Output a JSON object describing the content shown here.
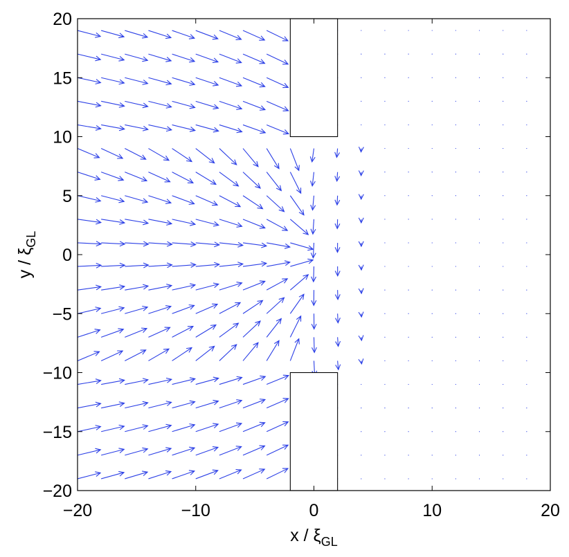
{
  "chart_data": {
    "type": "quiver",
    "xlabel": "x / ξ",
    "xlabel_sub": "GL",
    "ylabel": "y / ξ",
    "ylabel_sub": "GL",
    "xlim": [
      -20,
      20
    ],
    "ylim": [
      -20,
      20
    ],
    "xticks": [
      -20,
      -10,
      0,
      10,
      20
    ],
    "yticks": [
      -20,
      -15,
      -10,
      -5,
      0,
      5,
      10,
      15,
      20
    ],
    "xtick_labels": [
      "−20",
      "−10",
      "0",
      "10",
      "20"
    ],
    "ytick_labels": [
      "−20",
      "−15",
      "−10",
      "−5",
      "0",
      "5",
      "10",
      "15",
      "20"
    ],
    "grid": false,
    "arrow_color": "#2b3fe6",
    "field_description_values": {
      "grid_x": [
        -20,
        -18,
        -16,
        -14,
        -12,
        -10,
        -8,
        -6,
        -4,
        -2,
        0,
        2,
        4,
        6,
        8,
        10,
        12,
        14,
        16,
        18
      ],
      "grid_y": [
        -19,
        -17,
        -15,
        -13,
        -11,
        -9,
        -7,
        -5,
        -3,
        -1,
        1,
        3,
        5,
        7,
        9,
        11,
        13,
        15,
        17,
        19
      ]
    },
    "obstacles": [
      {
        "x": [
          -2,
          2
        ],
        "y": [
          10,
          20
        ]
      },
      {
        "x": [
          -2,
          2
        ],
        "y": [
          -20,
          -10
        ]
      }
    ]
  }
}
